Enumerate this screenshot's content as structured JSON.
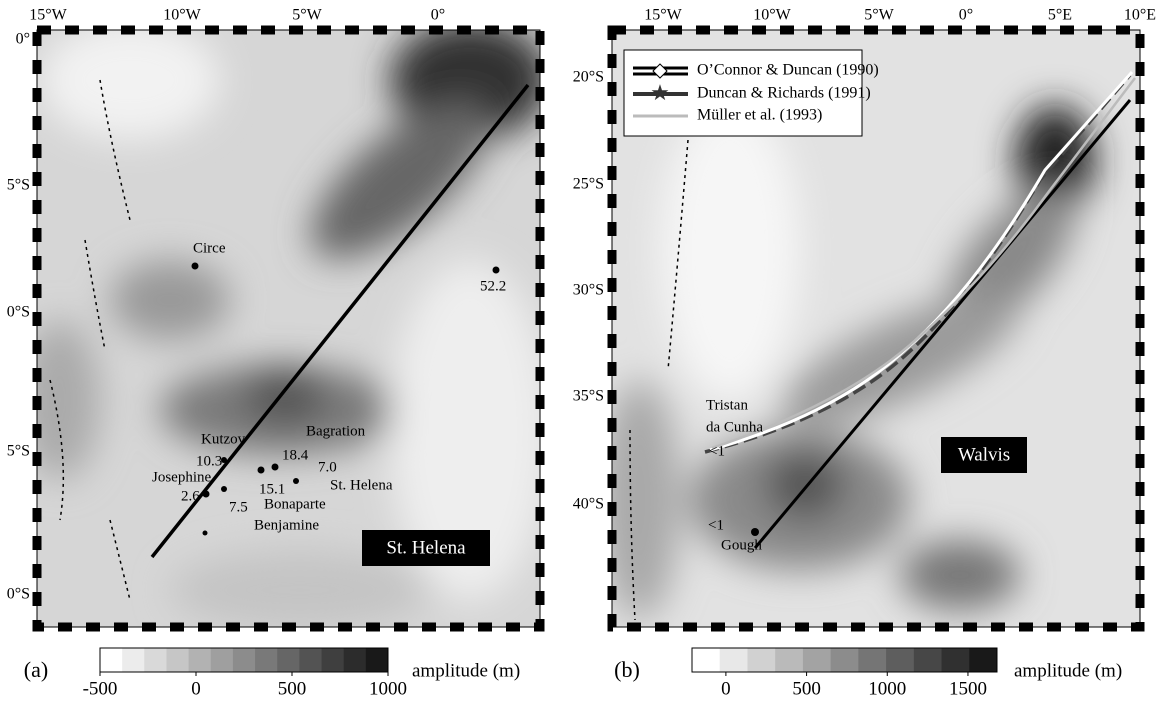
{
  "panels": [
    {
      "label": "(a)",
      "lon_labels": [
        "15°W",
        "10°W",
        "5°W",
        "0°"
      ],
      "lat_labels": [
        "0°",
        "5°S",
        "0°S",
        "5°S",
        "0°S"
      ],
      "annotations": [
        "Circe",
        "52.2",
        "Kutzov",
        "10.3",
        "Josephine",
        "2.6",
        "7.5",
        "Bagration",
        "18.4",
        "15.1",
        "7.0",
        "St. Helena",
        "Bonaparte",
        "Benjamine"
      ],
      "inset_label": "St. Helena",
      "colorbar": {
        "title": "amplitude (m)",
        "lim": [
          -500,
          1000
        ],
        "ticks": [
          -500,
          0,
          500,
          1000
        ]
      }
    },
    {
      "label": "(b)",
      "lon_labels": [
        "15°W",
        "10°W",
        "5°W",
        "0°",
        "5°E",
        "10°E"
      ],
      "lat_labels": [
        "20°S",
        "25°S",
        "30°S",
        "35°S",
        "40°S"
      ],
      "annotations": [
        "Tristan",
        "da Cunha",
        "<1",
        "<1",
        "Gough"
      ],
      "inset_label": "Walvis",
      "legend": [
        "O’Connor & Duncan (1990)",
        "Duncan & Richards (1991)",
        "Müller et al. (1993)"
      ],
      "colorbar": {
        "title": "amplitude (m)",
        "lim": [
          -210,
          1680
        ],
        "ticks": [
          0,
          500,
          1000,
          1500
        ]
      }
    }
  ]
}
